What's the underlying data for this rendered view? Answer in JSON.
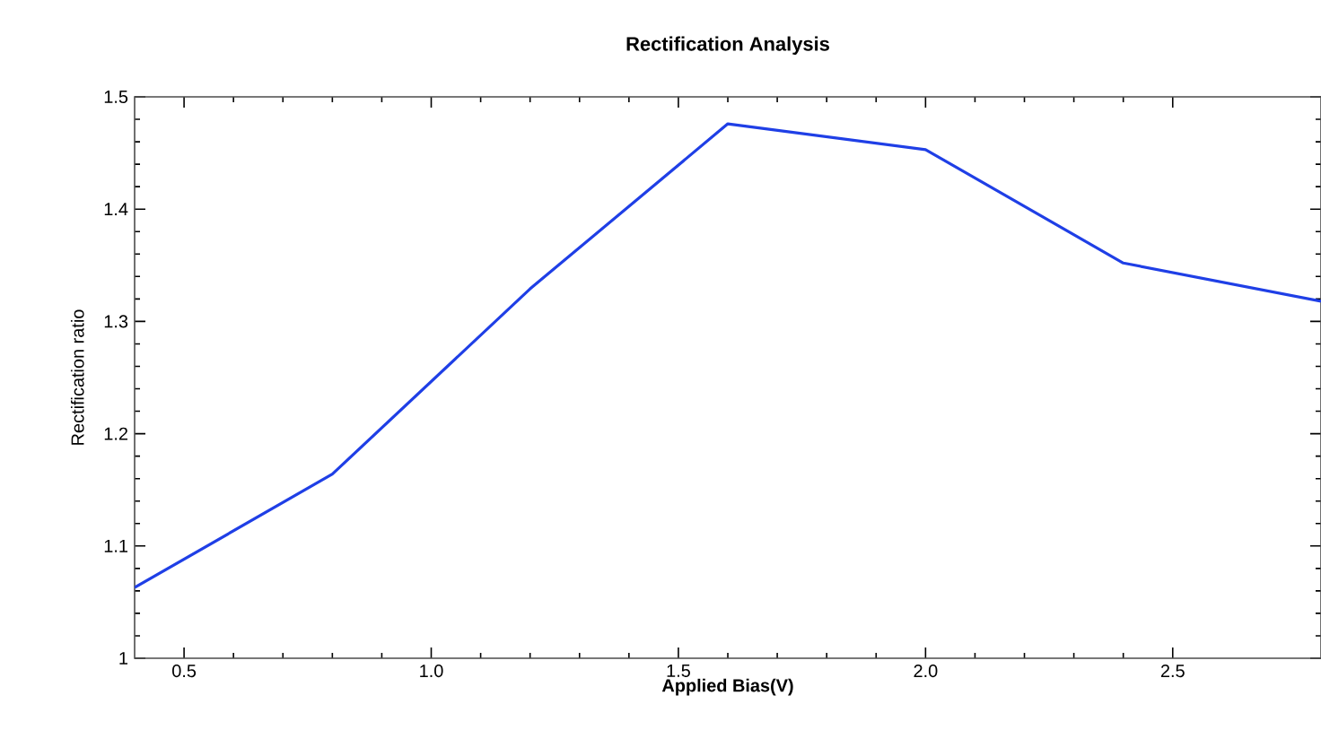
{
  "chart_data": {
    "type": "line",
    "title": "Rectification Analysis",
    "xlabel": "Applied Bias(V)",
    "ylabel": "Rectification ratio",
    "x": [
      0.4,
      0.8,
      1.2,
      1.6,
      2.0,
      2.4,
      2.8
    ],
    "series": [
      {
        "color": "#1f3fe6",
        "values": [
          1.063,
          1.164,
          1.329,
          1.476,
          1.453,
          1.352,
          1.318
        ]
      }
    ],
    "xlim": [
      0.4,
      2.8
    ],
    "ylim": [
      1,
      1.5
    ],
    "xticks": [
      {
        "value": 0.5,
        "label": "0.5"
      },
      {
        "value": 1.0,
        "label": "1.0"
      },
      {
        "value": 1.5,
        "label": "1.5"
      },
      {
        "value": 2.0,
        "label": "2.0"
      },
      {
        "value": 2.5,
        "label": "2.5"
      }
    ],
    "yticks": [
      1,
      1.1,
      1.2,
      1.3,
      1.4,
      1.5
    ],
    "grid": false,
    "marker": "none",
    "line_style": "solid"
  }
}
